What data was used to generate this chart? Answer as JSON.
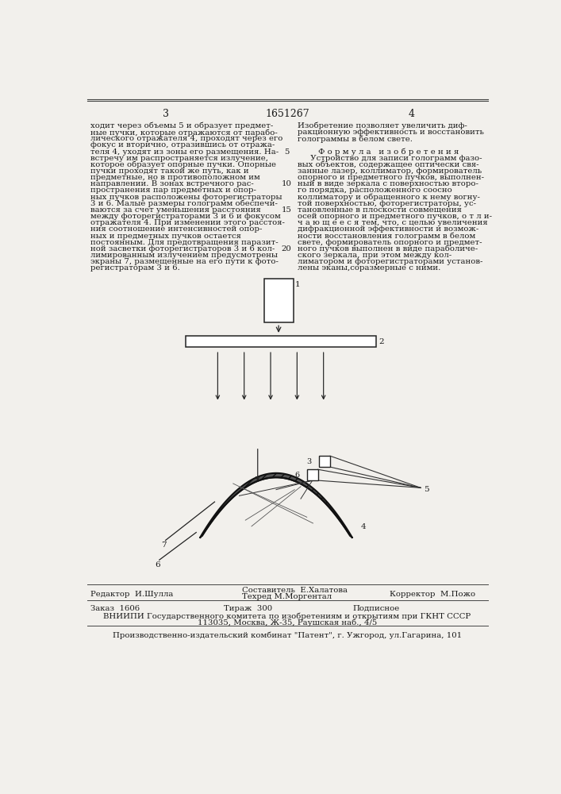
{
  "page_color": "#f2f0ec",
  "text_color": "#1a1a1a",
  "page_num_left": "3",
  "page_num_center": "1651267",
  "page_num_right": "4",
  "col1_text": [
    "ходит через объемы 5 и образует предмет-",
    "ные пучки, которые отражаются от парабо-",
    "лического отражателя 4, проходят через его",
    "фокус и вторично, отразившись от отража-",
    "теля 4, уходят из зоны его размещения. На-",
    "встречу им распространяется излучение,",
    "которое образует опорные пучки. Опорные",
    "пучки проходят такой же путь, как и",
    "предметные, но в противоположном им",
    "направлении. В зонах встречного рас-",
    "пространения пар предметных и опор-",
    "ных пучков расположены фоторегистраторы",
    "3 и 6. Малые размеры голограмм обеспечи-",
    "ваются за счет уменьшения расстояния",
    "между фоторегистраторами 3 и 6 и фокусом",
    "отражателя 4. При изменении этого расстоя-",
    "ния соотношение интенсивностей опор-",
    "ных и предметных пучков остается",
    "постоянным. Для предотвращения паразит-",
    "ной засветки фоторегистраторов 3 и 6 кол-",
    "лимированным излучением предусмотрены",
    "экраны 7, размещенные на его пути к фото-",
    "регистраторам 3 и 6."
  ],
  "line_numbers": {
    "4": "5",
    "9": "10",
    "13": "15",
    "19": "20"
  },
  "col2_text_top": [
    "Изобретение позволяет увеличить диф-",
    "ракционную эффективность и восстановить",
    "голограммы в белом свете."
  ],
  "col2_formula_title": "Ф о р м у л а   и з о б р е т е н и я",
  "col2_text_body": [
    "     Устройство для записи голограмм фазо-",
    "вых объектов, содержащее оптически свя-",
    "занные лазер, коллиматор, формирователь",
    "опорного и предметного пучков, выполнен-",
    "ный в виде зеркала с поверхностью второ-",
    "го порядка, расположенного соосно",
    "коллиматору и обращенного к нему вогну-",
    "той поверхностью, фоторегистраторы, ус-",
    "тановленные в плоскости совмещения",
    "осей опорного и предметного пучков, о т л и-",
    "ч а ю щ е е с я тем, что, с целью увеличения",
    "дифракционной эффективности и возмож-",
    "ности восстановления голограмм в белом",
    "свете, формирователь опорного и предмет-",
    "ного пучков выполнен в виде параболиче-",
    "ского зеркала, при этом между кол-",
    "лиматором и фоторегистраторами установ-",
    "лены эканы,соразмерные с ними."
  ],
  "footer_editor": "Редактор  И.Шулла",
  "footer_composer": "Составитель  Е.Халатова",
  "footer_techred": "Техред М.Моргентал",
  "footer_corrector": "Корректор  М.Пожо",
  "footer_order": "Заказ  1606",
  "footer_tirazh": "Тираж  300",
  "footer_podpisnoe": "Подписное",
  "footer_vniipii": "ВНИИПИ Государственного комитета по изобретениям и открытиям при ГКНТ СССР",
  "footer_address": "113035, Москва, Ж-35, Раушская наб., 4/5",
  "footer_production": "Производственно-издательский комбинат \"Патент\", г. Ужгород, ул.Гагарина, 101"
}
